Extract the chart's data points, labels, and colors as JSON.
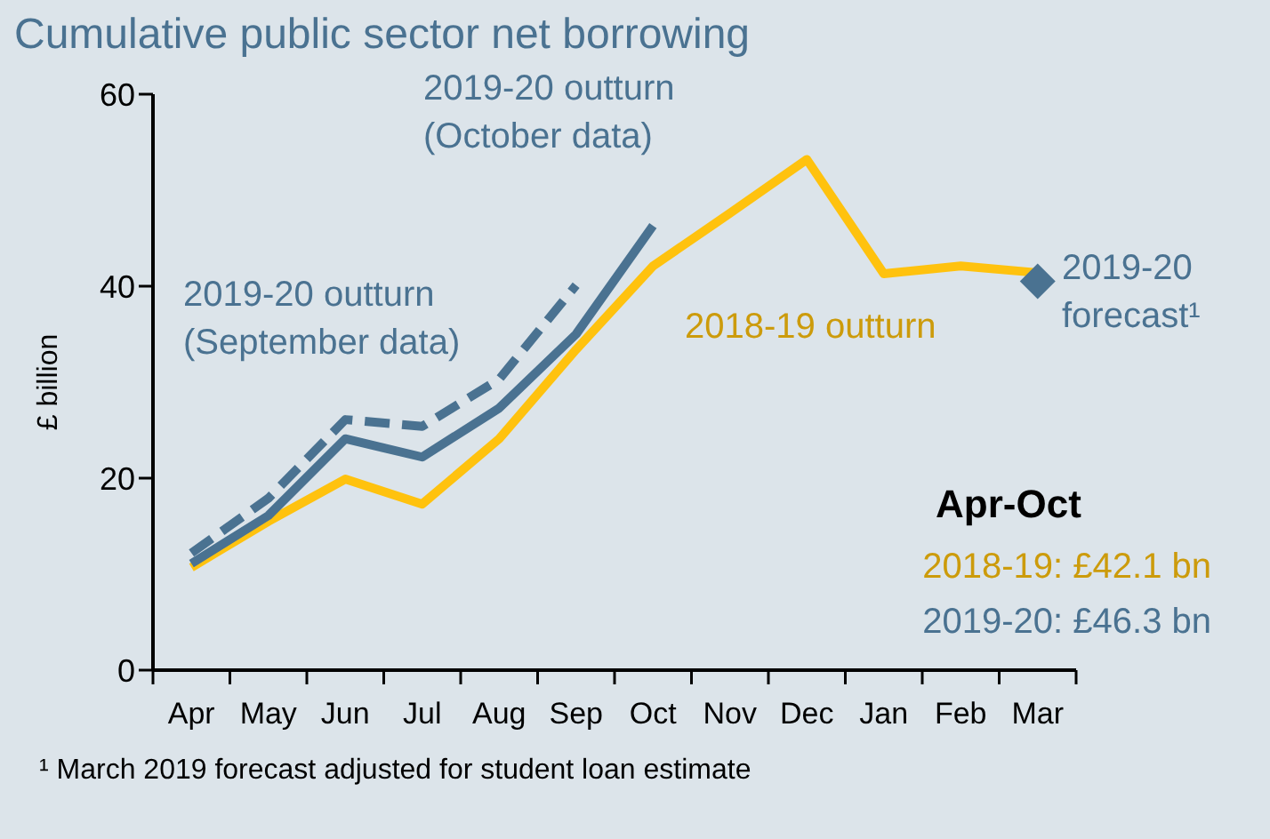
{
  "chart_data": {
    "type": "line",
    "title": "Cumulative public sector net borrowing",
    "ylabel": "£ billion",
    "categories": [
      "Apr",
      "May",
      "Jun",
      "Jul",
      "Aug",
      "Sep",
      "Oct",
      "Nov",
      "Dec",
      "Jan",
      "Feb",
      "Mar"
    ],
    "series": [
      {
        "name": "2018-19 outturn",
        "color": "#ffc20e",
        "values": [
          10.7,
          15.5,
          19.9,
          17.3,
          24.1,
          33.4,
          42.1,
          47.6,
          53.2,
          41.3,
          42.1,
          41.4
        ]
      },
      {
        "name": "2019-20 outturn (October data)",
        "color": "#4a7291",
        "values": [
          11.1,
          16.1,
          24.1,
          22.2,
          27.3,
          35.0,
          46.3,
          null,
          null,
          null,
          null,
          null
        ]
      },
      {
        "name": "2019-20 outturn (September data)",
        "color": "#4a7291",
        "line_style": "dashed",
        "values": [
          12.2,
          17.9,
          26.1,
          25.4,
          30.3,
          40.1,
          null,
          null,
          null,
          null,
          null,
          null
        ]
      },
      {
        "name": "2019-20 forecast¹",
        "type": "scatter",
        "marker": "diamond",
        "color": "#4a7291",
        "values": [
          null,
          null,
          null,
          null,
          null,
          null,
          null,
          null,
          null,
          null,
          null,
          40.5
        ]
      }
    ],
    "ylim": [
      0,
      60
    ],
    "yticks": [
      0,
      20,
      40,
      60
    ],
    "marker": "none",
    "line_style": "solid",
    "annotations": [
      "Apr-Oct",
      "2018-19: £42.1 bn",
      "2019-20: £46.3 bn",
      "¹ March 2019 forecast adjusted for student loan estimate"
    ]
  }
}
